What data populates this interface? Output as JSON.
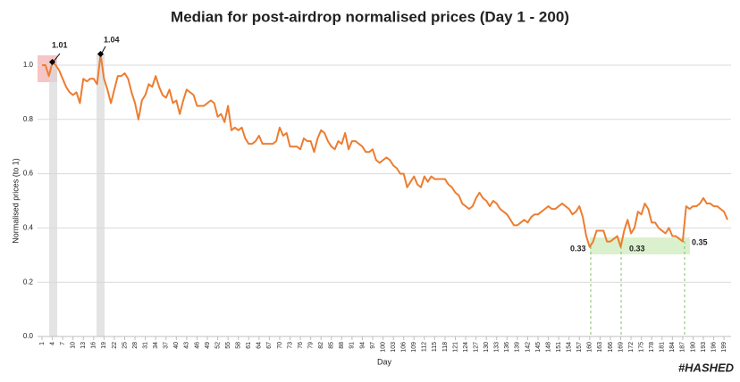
{
  "chart_data": {
    "type": "line",
    "title": "Median for post-airdrop normalised prices (Day 1 - 200)",
    "x_label": "Day",
    "y_label": "Normalised prices (to 1)",
    "annotations": [
      "1.01",
      "1.04",
      "0.33",
      "0.33",
      "0.35"
    ],
    "watermark": "#HASHED",
    "xlim": [
      1,
      200
    ],
    "ylim": [
      0,
      1.1
    ],
    "xticks": [
      1,
      4,
      7,
      10,
      13,
      16,
      19,
      22,
      25,
      28,
      31,
      34,
      37,
      40,
      43,
      46,
      49,
      52,
      55,
      58,
      61,
      64,
      67,
      70,
      73,
      76,
      79,
      82,
      85,
      88,
      91,
      94,
      97,
      100,
      103,
      106,
      109,
      112,
      115,
      118,
      121,
      124,
      127,
      130,
      133,
      136,
      139,
      142,
      145,
      148,
      151,
      154,
      157,
      160,
      163,
      166,
      169,
      172,
      175,
      178,
      181,
      184,
      187,
      190,
      193,
      196,
      199
    ],
    "yticks": [
      {
        "value": 0,
        "label": "0.0"
      },
      0.2,
      0.4,
      0.6,
      0.8,
      {
        "value": 1,
        "label": "1.0"
      }
    ],
    "grid": true,
    "x": [
      1,
      2,
      3,
      4,
      5,
      6,
      7,
      8,
      9,
      10,
      11,
      12,
      13,
      14,
      15,
      16,
      17,
      18,
      19,
      20,
      21,
      22,
      23,
      24,
      25,
      26,
      27,
      28,
      29,
      30,
      31,
      32,
      33,
      34,
      35,
      36,
      37,
      38,
      39,
      40,
      41,
      42,
      43,
      44,
      45,
      46,
      47,
      48,
      49,
      50,
      51,
      52,
      53,
      54,
      55,
      56,
      57,
      58,
      59,
      60,
      61,
      62,
      63,
      64,
      65,
      66,
      67,
      68,
      69,
      70,
      71,
      72,
      73,
      74,
      75,
      76,
      77,
      78,
      79,
      80,
      81,
      82,
      83,
      84,
      85,
      86,
      87,
      88,
      89,
      90,
      91,
      92,
      93,
      94,
      95,
      96,
      97,
      98,
      99,
      100,
      101,
      102,
      103,
      104,
      105,
      106,
      107,
      108,
      109,
      110,
      111,
      112,
      113,
      114,
      115,
      116,
      117,
      118,
      119,
      120,
      121,
      122,
      123,
      124,
      125,
      126,
      127,
      128,
      129,
      130,
      131,
      132,
      133,
      134,
      135,
      136,
      137,
      138,
      139,
      140,
      141,
      142,
      143,
      144,
      145,
      146,
      147,
      148,
      149,
      150,
      151,
      152,
      153,
      154,
      155,
      156,
      157,
      158,
      159,
      160,
      161,
      162,
      163,
      164,
      165,
      166,
      167,
      168,
      169,
      170,
      171,
      172,
      173,
      174,
      175,
      176,
      177,
      178,
      179,
      180,
      181,
      182,
      183,
      184,
      185,
      186,
      187,
      188,
      189,
      190,
      191,
      192,
      193,
      194,
      195,
      196,
      197,
      198,
      199,
      200
    ],
    "series": [
      {
        "color": "#ed7d31",
        "values": [
          1.0,
          1.0,
          0.96,
          1.01,
          1.0,
          0.98,
          0.95,
          0.92,
          0.9,
          0.89,
          0.9,
          0.86,
          0.95,
          0.94,
          0.95,
          0.95,
          0.93,
          1.04,
          0.95,
          0.91,
          0.86,
          0.91,
          0.96,
          0.96,
          0.97,
          0.95,
          0.9,
          0.86,
          0.8,
          0.87,
          0.89,
          0.93,
          0.92,
          0.96,
          0.92,
          0.89,
          0.88,
          0.91,
          0.86,
          0.87,
          0.82,
          0.87,
          0.91,
          0.9,
          0.89,
          0.85,
          0.85,
          0.85,
          0.86,
          0.87,
          0.86,
          0.81,
          0.82,
          0.79,
          0.85,
          0.76,
          0.77,
          0.76,
          0.77,
          0.73,
          0.71,
          0.71,
          0.72,
          0.74,
          0.71,
          0.71,
          0.71,
          0.71,
          0.72,
          0.77,
          0.74,
          0.75,
          0.7,
          0.7,
          0.7,
          0.69,
          0.73,
          0.72,
          0.72,
          0.68,
          0.73,
          0.76,
          0.75,
          0.72,
          0.7,
          0.69,
          0.72,
          0.71,
          0.75,
          0.69,
          0.72,
          0.72,
          0.71,
          0.7,
          0.68,
          0.68,
          0.69,
          0.65,
          0.64,
          0.65,
          0.66,
          0.65,
          0.63,
          0.62,
          0.6,
          0.6,
          0.55,
          0.57,
          0.59,
          0.56,
          0.55,
          0.59,
          0.57,
          0.59,
          0.58,
          0.58,
          0.58,
          0.58,
          0.56,
          0.55,
          0.53,
          0.52,
          0.49,
          0.48,
          0.47,
          0.48,
          0.51,
          0.53,
          0.51,
          0.5,
          0.48,
          0.5,
          0.49,
          0.47,
          0.46,
          0.45,
          0.43,
          0.41,
          0.41,
          0.42,
          0.43,
          0.42,
          0.44,
          0.45,
          0.45,
          0.46,
          0.47,
          0.48,
          0.47,
          0.47,
          0.48,
          0.49,
          0.48,
          0.47,
          0.45,
          0.46,
          0.48,
          0.44,
          0.37,
          0.33,
          0.35,
          0.39,
          0.39,
          0.39,
          0.35,
          0.35,
          0.36,
          0.37,
          0.33,
          0.39,
          0.43,
          0.38,
          0.4,
          0.46,
          0.45,
          0.49,
          0.47,
          0.42,
          0.42,
          0.4,
          0.39,
          0.38,
          0.4,
          0.37,
          0.37,
          0.36,
          0.35,
          0.48,
          0.47,
          0.48,
          0.48,
          0.49,
          0.51,
          0.49,
          0.49,
          0.48,
          0.48,
          0.47,
          0.46,
          0.43
        ]
      }
    ]
  }
}
